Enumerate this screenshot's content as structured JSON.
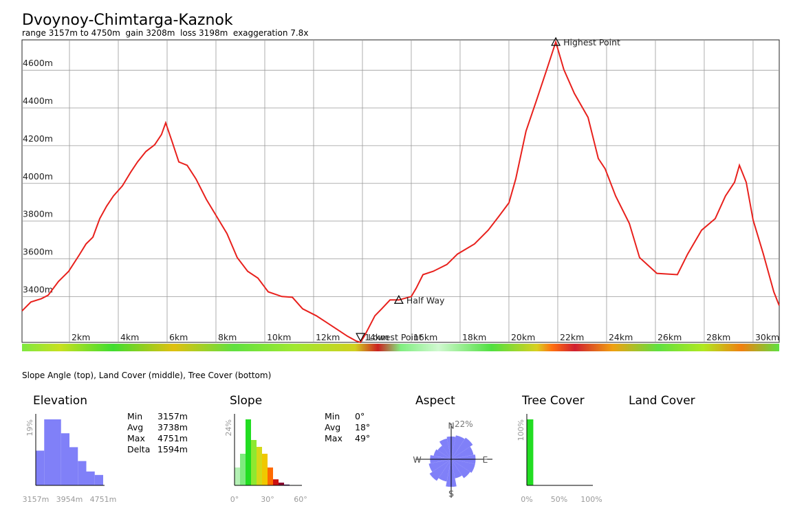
{
  "header": {
    "title": "Dvoynoy-Chimtarga-Kaznok",
    "subtitle": "range 3157m to 4750m  gain 3208m  loss 3198m  exaggeration 7.8x"
  },
  "caption": "Slope Angle (top), Land Cover (middle), Tree Cover (bottom)",
  "land_cover": {
    "title": "Land Cover"
  },
  "stats": {
    "elevation": [
      [
        "Min",
        "3157m"
      ],
      [
        "Avg",
        "3738m"
      ],
      [
        "Max",
        "4751m"
      ],
      [
        "Delta",
        "1594m"
      ]
    ],
    "slope": [
      [
        "Min",
        "0°"
      ],
      [
        "Avg",
        "18°"
      ],
      [
        "Max",
        "49°"
      ]
    ]
  },
  "chart_data": [
    {
      "type": "line",
      "color": "#e8201c",
      "grid": true,
      "x": [
        0.06,
        0.42,
        0.85,
        1.13,
        1.55,
        1.97,
        2.39,
        2.68,
        2.96,
        3.24,
        3.52,
        3.8,
        4.17,
        4.51,
        4.79,
        5.13,
        5.49,
        5.77,
        5.94,
        6.2,
        6.48,
        6.82,
        7.18,
        7.61,
        8.03,
        8.45,
        8.87,
        9.3,
        9.72,
        10.14,
        10.7,
        11.13,
        11.55,
        12.11,
        12.54,
        12.96,
        13.38,
        13.75,
        13.92,
        14.08,
        14.51,
        14.79,
        15.13,
        15.49,
        16.0,
        16.2,
        16.48,
        16.9,
        17.46,
        17.89,
        18.59,
        19.15,
        19.58,
        20.0,
        20.28,
        20.7,
        21.13,
        21.55,
        21.92,
        22.25,
        22.68,
        23.24,
        23.66,
        23.94,
        24.37,
        24.93,
        25.35,
        26.06,
        26.9,
        27.32,
        27.89,
        28.45,
        28.87,
        29.24,
        29.44,
        29.72,
        30.0,
        30.42,
        30.85,
        31.07
      ],
      "values": [
        3324,
        3371,
        3389,
        3407,
        3480,
        3534,
        3618,
        3679,
        3715,
        3813,
        3879,
        3933,
        3987,
        4060,
        4114,
        4169,
        4205,
        4259,
        4321,
        4223,
        4114,
        4096,
        4024,
        3915,
        3824,
        3734,
        3607,
        3534,
        3498,
        3425,
        3400,
        3396,
        3335,
        3298,
        3262,
        3226,
        3190,
        3164,
        3157,
        3190,
        3298,
        3335,
        3382,
        3382,
        3400,
        3444,
        3516,
        3534,
        3570,
        3625,
        3679,
        3752,
        3824,
        3897,
        4024,
        4277,
        4441,
        4604,
        4750,
        4604,
        4477,
        4350,
        4132,
        4078,
        3933,
        3788,
        3607,
        3523,
        3516,
        3625,
        3752,
        3813,
        3933,
        4006,
        4096,
        4006,
        3806,
        3625,
        3425,
        3353
      ],
      "xlim": [
        0,
        31.1
      ],
      "ylim": [
        3157,
        4761
      ],
      "xticks": [
        {
          "value": 2,
          "label": "2km"
        },
        {
          "value": 4,
          "label": "4km"
        },
        {
          "value": 6,
          "label": "6km"
        },
        {
          "value": 8,
          "label": "8km"
        },
        {
          "value": 10,
          "label": "10km"
        },
        {
          "value": 12,
          "label": "12km"
        },
        {
          "value": 14,
          "label": "14km"
        },
        {
          "value": 16,
          "label": "16km"
        },
        {
          "value": 18,
          "label": "18km"
        },
        {
          "value": 20,
          "label": "20km"
        },
        {
          "value": 22,
          "label": "22km"
        },
        {
          "value": 24,
          "label": "24km"
        },
        {
          "value": 26,
          "label": "26km"
        },
        {
          "value": 28,
          "label": "28km"
        },
        {
          "value": 30,
          "label": "30km"
        }
      ],
      "yticks": [
        {
          "value": 3400,
          "label": "3400m"
        },
        {
          "value": 3600,
          "label": "3600m"
        },
        {
          "value": 3800,
          "label": "3800m"
        },
        {
          "value": 4000,
          "label": "4000m"
        },
        {
          "value": 4200,
          "label": "4200m"
        },
        {
          "value": 4400,
          "label": "4400m"
        },
        {
          "value": 4600,
          "label": "4600m"
        }
      ],
      "annotations": [
        {
          "label": "Highest Point",
          "x": 21.92,
          "y": 4750,
          "marker": "up"
        },
        {
          "label": "Lowest Point",
          "x": 13.92,
          "y": 3157,
          "marker": "down"
        },
        {
          "label": "Half Way",
          "x": 15.49,
          "y": 3382,
          "marker": "up"
        }
      ]
    },
    {
      "type": "histogram",
      "title": "Elevation",
      "color": "#8080f8",
      "bins": [
        3157,
        3356.25,
        3555.5,
        3754.75,
        3954,
        4153.25,
        4352.5,
        4551.75,
        4751
      ],
      "values": [
        10,
        19,
        19,
        15,
        11,
        7,
        4,
        3
      ],
      "xlim": [
        3157,
        4751
      ],
      "ylim": [
        0,
        19
      ],
      "xticks": [
        {
          "value": 3157,
          "label": "3157m"
        },
        {
          "value": 3954,
          "label": "3954m"
        },
        {
          "value": 4751,
          "label": "4751m"
        }
      ],
      "yticks": [
        {
          "value": 19,
          "label": "19%"
        }
      ]
    },
    {
      "type": "histogram",
      "title": "Slope",
      "bins": [
        0,
        5,
        10,
        15,
        20,
        25,
        30,
        35,
        40,
        45,
        50
      ],
      "values": [
        6.5,
        11.5,
        24,
        16.5,
        14,
        11.5,
        6.5,
        2.2,
        1,
        0.3
      ],
      "colors": [
        "#b4f0b4",
        "#7eea7e",
        "#22dd22",
        "#8ee830",
        "#d4d818",
        "#f0c800",
        "#ff6a00",
        "#cc1010",
        "#880030",
        "#4a1a6a"
      ],
      "xlim": [
        0,
        60
      ],
      "ylim": [
        0,
        24
      ],
      "xticks": [
        {
          "value": 0,
          "label": "0°"
        },
        {
          "value": 30,
          "label": "30°"
        },
        {
          "value": 60,
          "label": "60°"
        }
      ],
      "yticks": [
        {
          "value": 24,
          "label": "24%"
        }
      ]
    },
    {
      "type": "polar",
      "title": "Aspect",
      "color": "#8080f8",
      "categories": [
        "N",
        null,
        null,
        null,
        "E",
        null,
        null,
        null,
        "S",
        null,
        null,
        null,
        "W",
        null,
        null,
        null
      ],
      "values": [
        14,
        15,
        16,
        14,
        15,
        15,
        14,
        12,
        17,
        14,
        16,
        14,
        13,
        11,
        10,
        13
      ],
      "ylim": [
        0,
        22
      ],
      "yticks": [
        {
          "value": 22,
          "label": "22%"
        }
      ]
    },
    {
      "type": "histogram",
      "title": "Tree Cover",
      "color": "#22dd22",
      "bins": [
        0,
        10
      ],
      "values": [
        100
      ],
      "xlim": [
        0,
        100
      ],
      "ylim": [
        0,
        100
      ],
      "xticks": [
        {
          "value": 0,
          "label": "0%"
        },
        {
          "value": 50,
          "label": "50%"
        },
        {
          "value": 100,
          "label": "100%"
        }
      ],
      "yticks": [
        {
          "value": 100,
          "label": "100%"
        }
      ]
    }
  ]
}
